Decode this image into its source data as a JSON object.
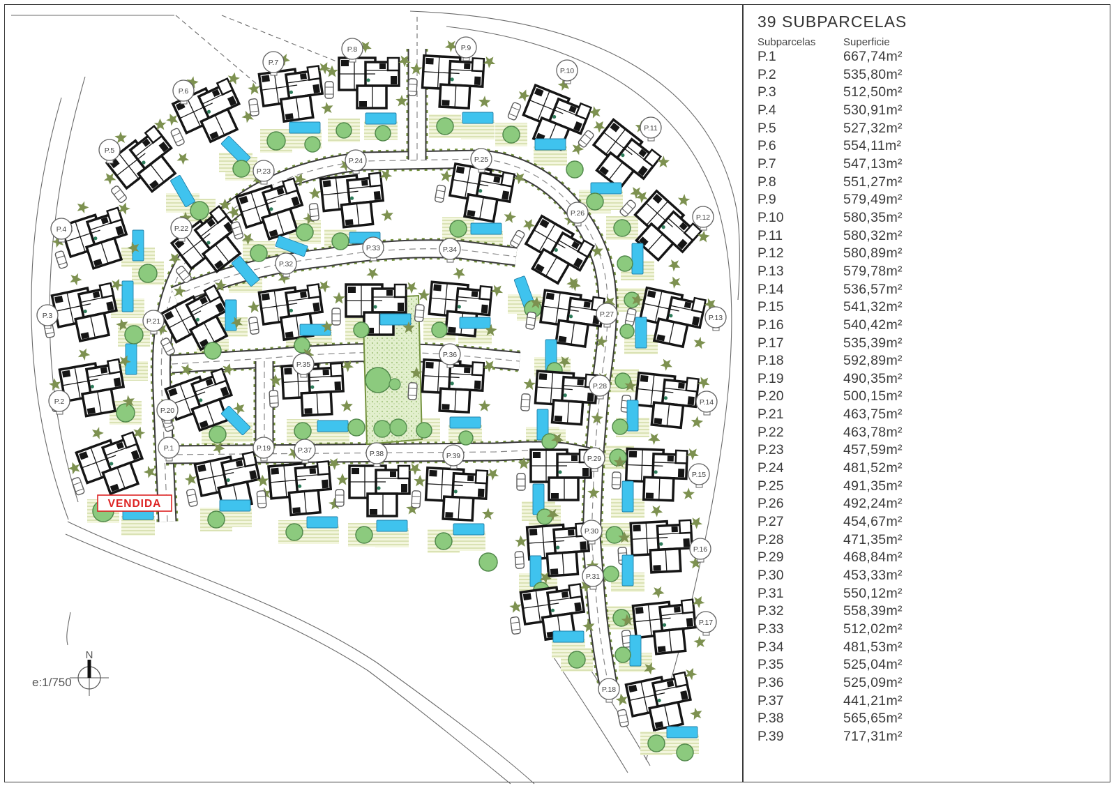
{
  "legend": {
    "title": "39 SUBPARCELAS",
    "col_subparcela": "Subparcelas",
    "col_superficie": "Superficie",
    "parcels": [
      {
        "id": "P.1",
        "area": "667,74m²"
      },
      {
        "id": "P.2",
        "area": "535,80m²"
      },
      {
        "id": "P.3",
        "area": "512,50m²"
      },
      {
        "id": "P.4",
        "area": "530,91m²"
      },
      {
        "id": "P.5",
        "area": "527,32m²"
      },
      {
        "id": "P.6",
        "area": "554,11m²"
      },
      {
        "id": "P.7",
        "area": "547,13m²"
      },
      {
        "id": "P.8",
        "area": "551,27m²"
      },
      {
        "id": "P.9",
        "area": "579,49m²"
      },
      {
        "id": "P.10",
        "area": "580,35m²"
      },
      {
        "id": "P.11",
        "area": "580,32m²"
      },
      {
        "id": "P.12",
        "area": "580,89m²"
      },
      {
        "id": "P.13",
        "area": "579,78m²"
      },
      {
        "id": "P.14",
        "area": "536,57m²"
      },
      {
        "id": "P.15",
        "area": "541,32m²"
      },
      {
        "id": "P.16",
        "area": "540,42m²"
      },
      {
        "id": "P.17",
        "area": "535,39m²"
      },
      {
        "id": "P.18",
        "area": "592,89m²"
      },
      {
        "id": "P.19",
        "area": "490,35m²"
      },
      {
        "id": "P.20",
        "area": "500,15m²"
      },
      {
        "id": "P.21",
        "area": "463,75m²"
      },
      {
        "id": "P.22",
        "area": "463,78m²"
      },
      {
        "id": "P.23",
        "area": "457,59m²"
      },
      {
        "id": "P.24",
        "area": "481,52m²"
      },
      {
        "id": "P.25",
        "area": "491,35m²"
      },
      {
        "id": "P.26",
        "area": "492,24m²"
      },
      {
        "id": "P.27",
        "area": "454,67m²"
      },
      {
        "id": "P.28",
        "area": "471,35m²"
      },
      {
        "id": "P.29",
        "area": "468,84m²"
      },
      {
        "id": "P.30",
        "area": "453,33m²"
      },
      {
        "id": "P.31",
        "area": "550,12m²"
      },
      {
        "id": "P.32",
        "area": "558,39m²"
      },
      {
        "id": "P.33",
        "area": "512,02m²"
      },
      {
        "id": "P.34",
        "area": "481,53m²"
      },
      {
        "id": "P.35",
        "area": "525,04m²"
      },
      {
        "id": "P.36",
        "area": "525,09m²"
      },
      {
        "id": "P.37",
        "area": "441,21m²"
      },
      {
        "id": "P.38",
        "area": "565,65m²"
      },
      {
        "id": "P.39",
        "area": "717,31m²"
      }
    ]
  },
  "plan": {
    "sold_label": "VENDIDA",
    "scale_label": "e:1/750",
    "north_label": "N"
  },
  "colors": {
    "tree_green": "#8cca7e",
    "plant_olive": "#7d9150",
    "hedge_olive": "#74923e",
    "pool_blue": "#3fc3ee",
    "sold_red": "#dd2222",
    "line_gray": "#6a6a6a"
  }
}
